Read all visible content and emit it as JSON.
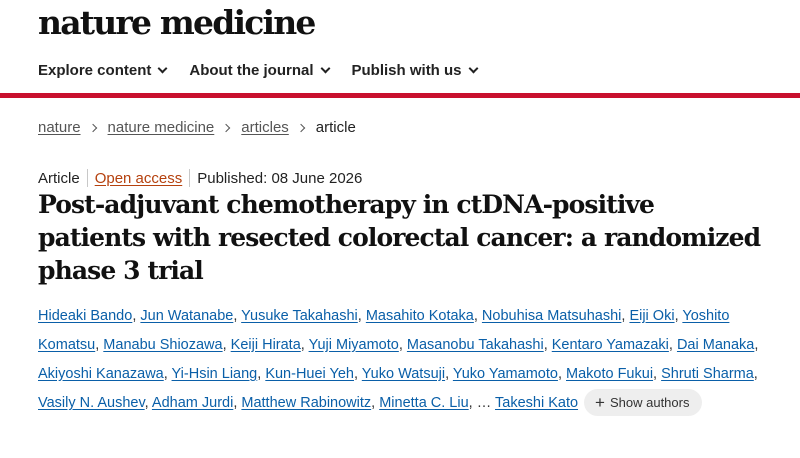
{
  "header": {
    "logo": "nature medicine",
    "nav": [
      {
        "label": "Explore content"
      },
      {
        "label": "About the journal"
      },
      {
        "label": "Publish with us"
      }
    ]
  },
  "breadcrumb": {
    "items": [
      "nature",
      "nature medicine",
      "articles"
    ],
    "current": "article"
  },
  "article": {
    "type": "Article",
    "access": "Open access",
    "published": "Published: 08 June 2026",
    "title_lines": [
      "Post-adjuvant chemotherapy in ctDNA-positive",
      "patients with resected colorectal cancer: a randomized",
      "phase 3 trial"
    ],
    "authors": [
      "Hideaki Bando",
      "Jun Watanabe",
      "Yusuke Takahashi",
      "Masahito Kotaka",
      "Nobuhisa Matsuhashi",
      "Eiji Oki",
      "Yoshito Komatsu",
      "Manabu Shiozawa",
      "Keiji Hirata",
      "Yuji Miyamoto",
      "Masanobu Takahashi",
      "Kentaro Yamazaki",
      "Dai Manaka",
      "Akiyoshi Kanazawa",
      "Yi-Hsin Liang",
      "Kun-Huei Yeh",
      "Yuko Watsuji",
      "Yuko Yamamoto",
      "Makoto Fukui",
      "Shruti Sharma",
      "Vasily N. Aushev",
      "Adham Jurdi",
      "Matthew Rabinowitz",
      "Minetta C. Liu"
    ],
    "ellipsis": "…",
    "last_author": "Takeshi Kato",
    "show_authors_label": "Show authors",
    "colors": {
      "accent_red": "#c8102e",
      "link_blue": "#0a5fa8",
      "open_access": "#b5410e"
    }
  }
}
